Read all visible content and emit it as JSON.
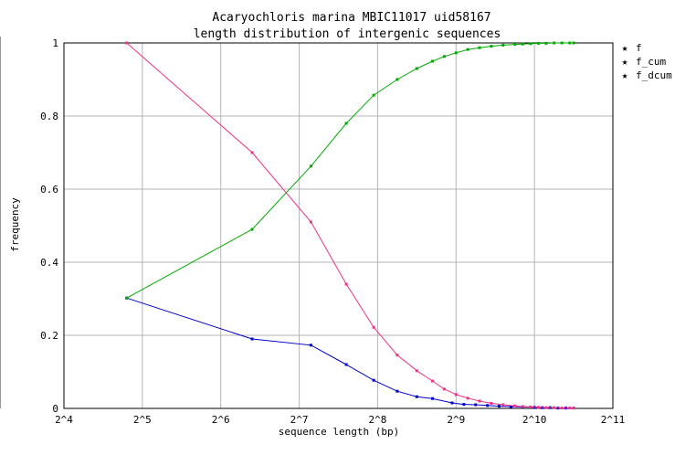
{
  "chart_data": {
    "type": "line",
    "title": "Acaryochloris marina MBIC11017 uid58167",
    "subtitle": "length distribution of intergenic sequences",
    "xlabel": "sequence length (bp)",
    "ylabel": "frequency",
    "x_scale": "log2",
    "xlim_exp": [
      4,
      11
    ],
    "ylim": [
      0,
      1
    ],
    "grid": true,
    "legend_position": "top-right",
    "x_ticks": [
      "2^4",
      "2^5",
      "2^6",
      "2^7",
      "2^8",
      "2^9",
      "2^10",
      "2^11"
    ],
    "y_ticks": [
      "0",
      "0.2",
      "0.4",
      "0.6",
      "0.8",
      "1"
    ],
    "series": [
      {
        "name": "f",
        "color": "#0000cc",
        "points": [
          [
            4.8,
            0.302
          ],
          [
            6.4,
            0.19
          ],
          [
            7.15,
            0.173
          ],
          [
            7.6,
            0.12
          ],
          [
            7.95,
            0.077
          ],
          [
            8.25,
            0.047
          ],
          [
            8.5,
            0.032
          ],
          [
            8.7,
            0.027
          ],
          [
            8.95,
            0.015
          ],
          [
            9.1,
            0.011
          ],
          [
            9.25,
            0.01
          ],
          [
            9.4,
            0.008
          ],
          [
            9.55,
            0.006
          ],
          [
            9.7,
            0.005
          ],
          [
            9.85,
            0.004
          ],
          [
            10.0,
            0.003
          ],
          [
            10.1,
            0.002
          ],
          [
            10.2,
            0.002
          ],
          [
            10.3,
            0.001
          ],
          [
            10.4,
            0.001
          ],
          [
            10.5,
            0.001
          ]
        ]
      },
      {
        "name": "f_cum",
        "color": "#00aa00",
        "points": [
          [
            4.8,
            0.302
          ],
          [
            6.4,
            0.49
          ],
          [
            7.15,
            0.663
          ],
          [
            7.6,
            0.78
          ],
          [
            7.95,
            0.857
          ],
          [
            8.25,
            0.9
          ],
          [
            8.5,
            0.93
          ],
          [
            8.7,
            0.95
          ],
          [
            8.85,
            0.963
          ],
          [
            9.0,
            0.973
          ],
          [
            9.15,
            0.982
          ],
          [
            9.3,
            0.987
          ],
          [
            9.45,
            0.991
          ],
          [
            9.6,
            0.994
          ],
          [
            9.75,
            0.996
          ],
          [
            9.85,
            0.997
          ],
          [
            9.95,
            0.998
          ],
          [
            10.05,
            0.999
          ],
          [
            10.15,
            0.999
          ],
          [
            10.25,
            1.0
          ],
          [
            10.35,
            1.0
          ],
          [
            10.45,
            1.0
          ],
          [
            10.5,
            1.0
          ]
        ]
      },
      {
        "name": "f_dcum",
        "color": "#ee3388",
        "points": [
          [
            4.8,
            1.0
          ],
          [
            6.4,
            0.7
          ],
          [
            7.15,
            0.51
          ],
          [
            7.6,
            0.34
          ],
          [
            7.95,
            0.222
          ],
          [
            8.25,
            0.146
          ],
          [
            8.5,
            0.103
          ],
          [
            8.7,
            0.075
          ],
          [
            8.85,
            0.053
          ],
          [
            9.0,
            0.038
          ],
          [
            9.15,
            0.028
          ],
          [
            9.3,
            0.02
          ],
          [
            9.45,
            0.014
          ],
          [
            9.6,
            0.01
          ],
          [
            9.75,
            0.007
          ],
          [
            9.85,
            0.005
          ],
          [
            9.95,
            0.004
          ],
          [
            10.05,
            0.003
          ],
          [
            10.15,
            0.002
          ],
          [
            10.25,
            0.002
          ],
          [
            10.35,
            0.001
          ],
          [
            10.45,
            0.001
          ],
          [
            10.5,
            0.001
          ]
        ]
      }
    ]
  }
}
